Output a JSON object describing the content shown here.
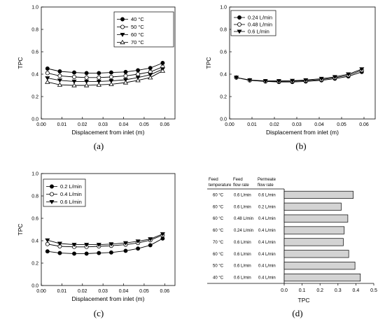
{
  "chart_data": [
    {
      "type": "line",
      "caption": "(a)",
      "xlabel": "Displacement from inlet (m)",
      "ylabel": "TPC",
      "xlim": [
        0,
        0.065
      ],
      "ylim": [
        0,
        1.0
      ],
      "xticks": [
        "0.00",
        "0.01",
        "0.02",
        "0.03",
        "0.04",
        "0.05",
        "0.06"
      ],
      "yticks": [
        "0.0",
        "0.2",
        "0.4",
        "0.6",
        "0.8",
        "1.0"
      ],
      "legend_position": "top-right",
      "x": [
        0.003,
        0.009,
        0.016,
        0.022,
        0.028,
        0.034,
        0.041,
        0.047,
        0.053,
        0.059
      ],
      "series": [
        {
          "name": "40 °C",
          "marker": "filled-circle",
          "values": [
            0.45,
            0.425,
            0.415,
            0.41,
            0.41,
            0.415,
            0.42,
            0.435,
            0.455,
            0.5
          ]
        },
        {
          "name": "50 °C",
          "marker": "open-circle",
          "values": [
            0.41,
            0.385,
            0.375,
            0.37,
            0.37,
            0.375,
            0.385,
            0.4,
            0.42,
            0.465
          ]
        },
        {
          "name": "60 °C",
          "marker": "filled-triangle-down",
          "values": [
            0.365,
            0.345,
            0.335,
            0.335,
            0.335,
            0.34,
            0.35,
            0.37,
            0.395,
            0.445
          ]
        },
        {
          "name": "70 °C",
          "marker": "open-triangle-up",
          "values": [
            0.33,
            0.305,
            0.3,
            0.3,
            0.305,
            0.31,
            0.325,
            0.345,
            0.37,
            0.43
          ]
        }
      ]
    },
    {
      "type": "line",
      "caption": "(b)",
      "xlabel": "Displacement from inlet (m)",
      "ylabel": "TPC",
      "xlim": [
        0,
        0.065
      ],
      "ylim": [
        0,
        1.0
      ],
      "xticks": [
        "0.00",
        "0.01",
        "0.02",
        "0.03",
        "0.04",
        "0.05",
        "0.06"
      ],
      "yticks": [
        "0.0",
        "0.2",
        "0.4",
        "0.6",
        "0.8",
        "1.0"
      ],
      "legend_position": "top-right",
      "x": [
        0.003,
        0.009,
        0.016,
        0.022,
        0.028,
        0.034,
        0.041,
        0.047,
        0.053,
        0.059
      ],
      "series": [
        {
          "name": "0.24 L/min",
          "marker": "filled-circle",
          "values": [
            0.37,
            0.345,
            0.335,
            0.33,
            0.33,
            0.335,
            0.345,
            0.36,
            0.38,
            0.42
          ]
        },
        {
          "name": "0.48 L/min",
          "marker": "open-circle",
          "values": [
            0.37,
            0.345,
            0.337,
            0.335,
            0.337,
            0.342,
            0.352,
            0.368,
            0.39,
            0.435
          ]
        },
        {
          "name": "0.6 L/min",
          "marker": "filled-triangle-down",
          "values": [
            0.37,
            0.348,
            0.34,
            0.34,
            0.342,
            0.348,
            0.36,
            0.376,
            0.4,
            0.445
          ]
        }
      ]
    },
    {
      "type": "line",
      "caption": "(c)",
      "xlabel": "Displacement from inlet (m)",
      "ylabel": "TPC",
      "xlim": [
        0,
        0.065
      ],
      "ylim": [
        0,
        1.0
      ],
      "xticks": [
        "0.00",
        "0.01",
        "0.02",
        "0.03",
        "0.04",
        "0.05",
        "0.06"
      ],
      "yticks": [
        "0.0",
        "0.2",
        "0.4",
        "0.6",
        "0.8",
        "1.0"
      ],
      "legend_position": "top-left",
      "x": [
        0.003,
        0.009,
        0.016,
        0.022,
        0.028,
        0.034,
        0.041,
        0.047,
        0.053,
        0.059
      ],
      "series": [
        {
          "name": "0.2 L/min",
          "marker": "filled-circle",
          "values": [
            0.305,
            0.29,
            0.285,
            0.285,
            0.29,
            0.295,
            0.31,
            0.33,
            0.36,
            0.42
          ]
        },
        {
          "name": "0.4 L/min",
          "marker": "open-circle",
          "values": [
            0.37,
            0.35,
            0.345,
            0.345,
            0.35,
            0.355,
            0.365,
            0.38,
            0.405,
            0.45
          ]
        },
        {
          "name": "0.6 L/min",
          "marker": "filled-triangle-down",
          "values": [
            0.405,
            0.375,
            0.365,
            0.365,
            0.365,
            0.37,
            0.38,
            0.395,
            0.415,
            0.46
          ]
        }
      ]
    },
    {
      "type": "bar",
      "orientation": "horizontal",
      "caption": "(d)",
      "xlabel": "TPC",
      "xlim": [
        0,
        0.5
      ],
      "xticks": [
        "0.0",
        "0.1",
        "0.2",
        "0.3",
        "0.4",
        "0.5"
      ],
      "columns": [
        "Feed temperature",
        "Feed flow rate",
        "Permeate flow rate"
      ],
      "column_lines": [
        [
          "Feed",
          "temperature"
        ],
        [
          "Feed",
          "flow rate"
        ],
        [
          "Permeate",
          "flow rate"
        ]
      ],
      "rows": [
        {
          "temp": "60 °C",
          "feed": "0.6 L/min",
          "perm": "0.6 L/min",
          "value": 0.385
        },
        {
          "temp": "60 °C",
          "feed": "0.6 L/min",
          "perm": "0.2 L/min",
          "value": 0.318
        },
        {
          "temp": "60 °C",
          "feed": "0.48 L/min",
          "perm": "0.4 L/min",
          "value": 0.355
        },
        {
          "temp": "60 °C",
          "feed": "0.24 L/min",
          "perm": "0.4 L/min",
          "value": 0.335
        },
        {
          "temp": "70 °C",
          "feed": "0.6 L/min",
          "perm": "0.4 L/min",
          "value": 0.33
        },
        {
          "temp": "60 °C",
          "feed": "0.6 L/min",
          "perm": "0.4 L/min",
          "value": 0.36
        },
        {
          "temp": "50 °C",
          "feed": "0.6 L/min",
          "perm": "0.4 L/min",
          "value": 0.395
        },
        {
          "temp": "40 °C",
          "feed": "0.6 L/min",
          "perm": "0.4 L/min",
          "value": 0.425
        }
      ]
    }
  ]
}
